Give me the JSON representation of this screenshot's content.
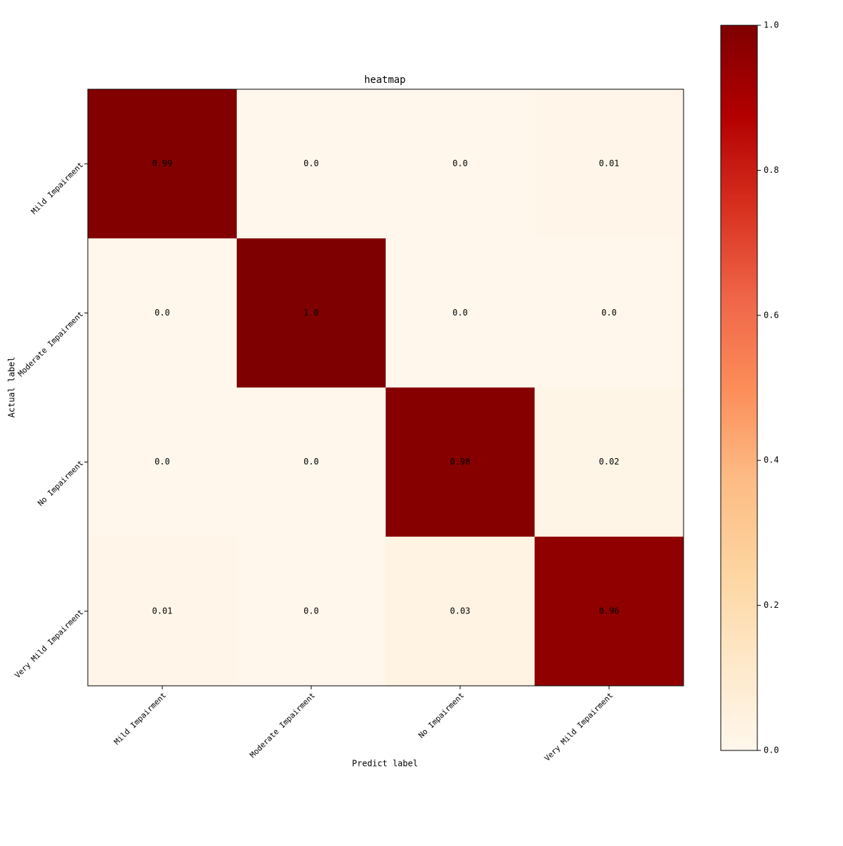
{
  "chart_data": {
    "type": "heatmap",
    "title": "heatmap",
    "x_label": "Predict label",
    "y_label": "Actual label",
    "x_categories": [
      "Mild Impairment",
      "Moderate Impairment",
      "No Impairment",
      "Very Mild Impairment"
    ],
    "y_categories": [
      "Mild Impairment",
      "Moderate Impairment",
      "No Impairment",
      "Very Mild Impairment"
    ],
    "values": [
      [
        0.99,
        0,
        0,
        0.01
      ],
      [
        0,
        1,
        0,
        0
      ],
      [
        0,
        0,
        0.98,
        0.02
      ],
      [
        0.01,
        0,
        0.03,
        0.96
      ]
    ],
    "value_labels": [
      [
        "0.99",
        "0.0",
        "0.0",
        "0.01"
      ],
      [
        "0.0",
        "1.0",
        "0.0",
        "0.0"
      ],
      [
        "0.0",
        "0.0",
        "0.98",
        "0.02"
      ],
      [
        "0.01",
        "0.0",
        "0.03",
        "0.96"
      ]
    ],
    "colormap": [
      "#fff7ec",
      "#fee8c8",
      "#fdd49e",
      "#fdbb84",
      "#fc8d59",
      "#ef6548",
      "#d7301f",
      "#b30000",
      "#7f0000"
    ],
    "zlim": [
      0,
      1
    ],
    "zticks": [
      {
        "value": 0,
        "label": "0.0"
      },
      0.2,
      0.4,
      0.6,
      0.8,
      {
        "value": 1,
        "label": "1.0"
      }
    ]
  }
}
